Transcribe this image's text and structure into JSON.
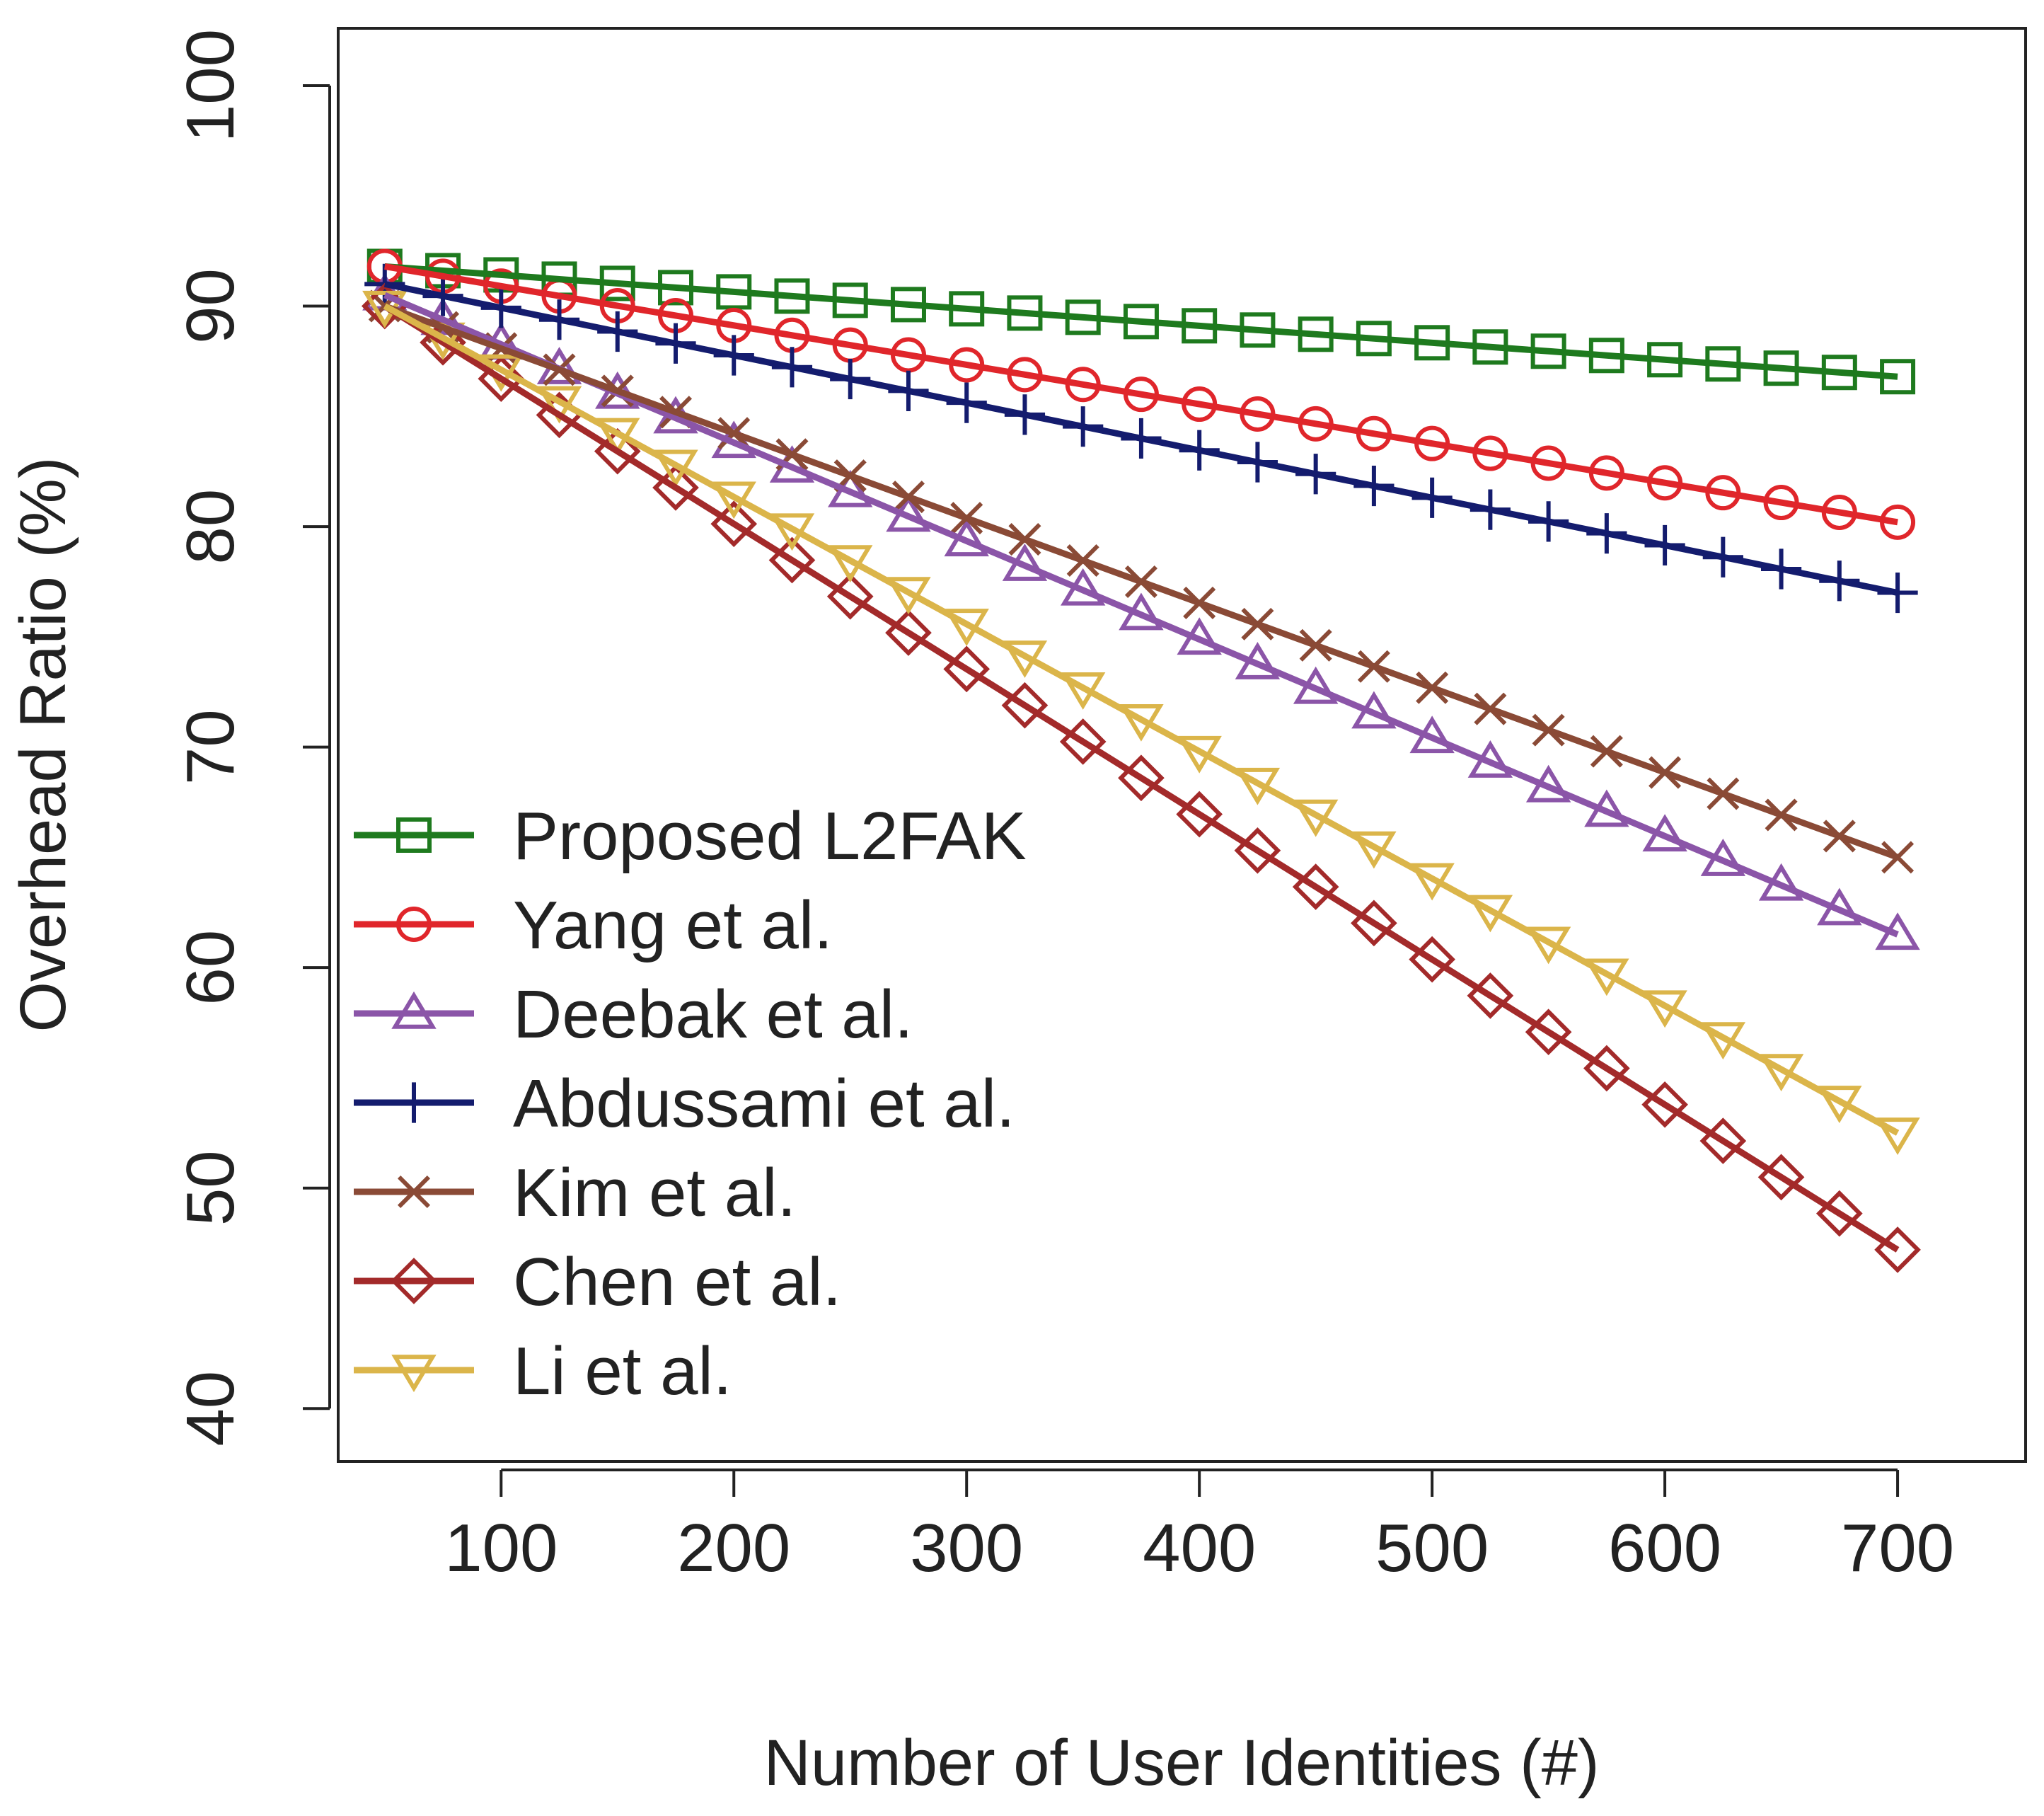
{
  "chart_data": {
    "type": "line",
    "title": "",
    "xlabel": "Number of User Identities (#)",
    "ylabel": "Overhead Ratio (%)",
    "xlim": [
      30,
      755
    ],
    "ylim": [
      37.6,
      102.6
    ],
    "x_ticks": [
      100,
      200,
      300,
      400,
      500,
      600,
      700
    ],
    "y_ticks": [
      40,
      50,
      60,
      70,
      80,
      90,
      100
    ],
    "legend_position": "bottom-left",
    "grid": false,
    "series": [
      {
        "name": "Proposed L2FAK",
        "color": "#1e7a1e",
        "marker": "square",
        "x_start": 50,
        "x_end": 700,
        "y_start": 91.8,
        "y_end": 86.8
      },
      {
        "name": "Yang et al.",
        "color": "#e0262b",
        "marker": "circle",
        "x_start": 50,
        "x_end": 700,
        "y_start": 91.8,
        "y_end": 80.2
      },
      {
        "name": "Deebak et al.",
        "color": "#8b55a8",
        "marker": "triangle-up",
        "x_start": 50,
        "x_end": 700,
        "y_start": 90.5,
        "y_end": 61.5
      },
      {
        "name": "Abdussami et al.",
        "color": "#141c6e",
        "marker": "plus",
        "x_start": 50,
        "x_end": 700,
        "y_start": 91.0,
        "y_end": 77.0
      },
      {
        "name": "Kim et al.",
        "color": "#8a4a36",
        "marker": "cross",
        "x_start": 50,
        "x_end": 700,
        "y_start": 90.0,
        "y_end": 65.0
      },
      {
        "name": "Chen et al.",
        "color": "#a32a2a",
        "marker": "diamond",
        "x_start": 50,
        "x_end": 700,
        "y_start": 90.0,
        "y_end": 47.2
      },
      {
        "name": "Li et al.",
        "color": "#dbb54a",
        "marker": "triangle-down",
        "x_start": 50,
        "x_end": 700,
        "y_start": 90.0,
        "y_end": 52.5
      }
    ]
  }
}
